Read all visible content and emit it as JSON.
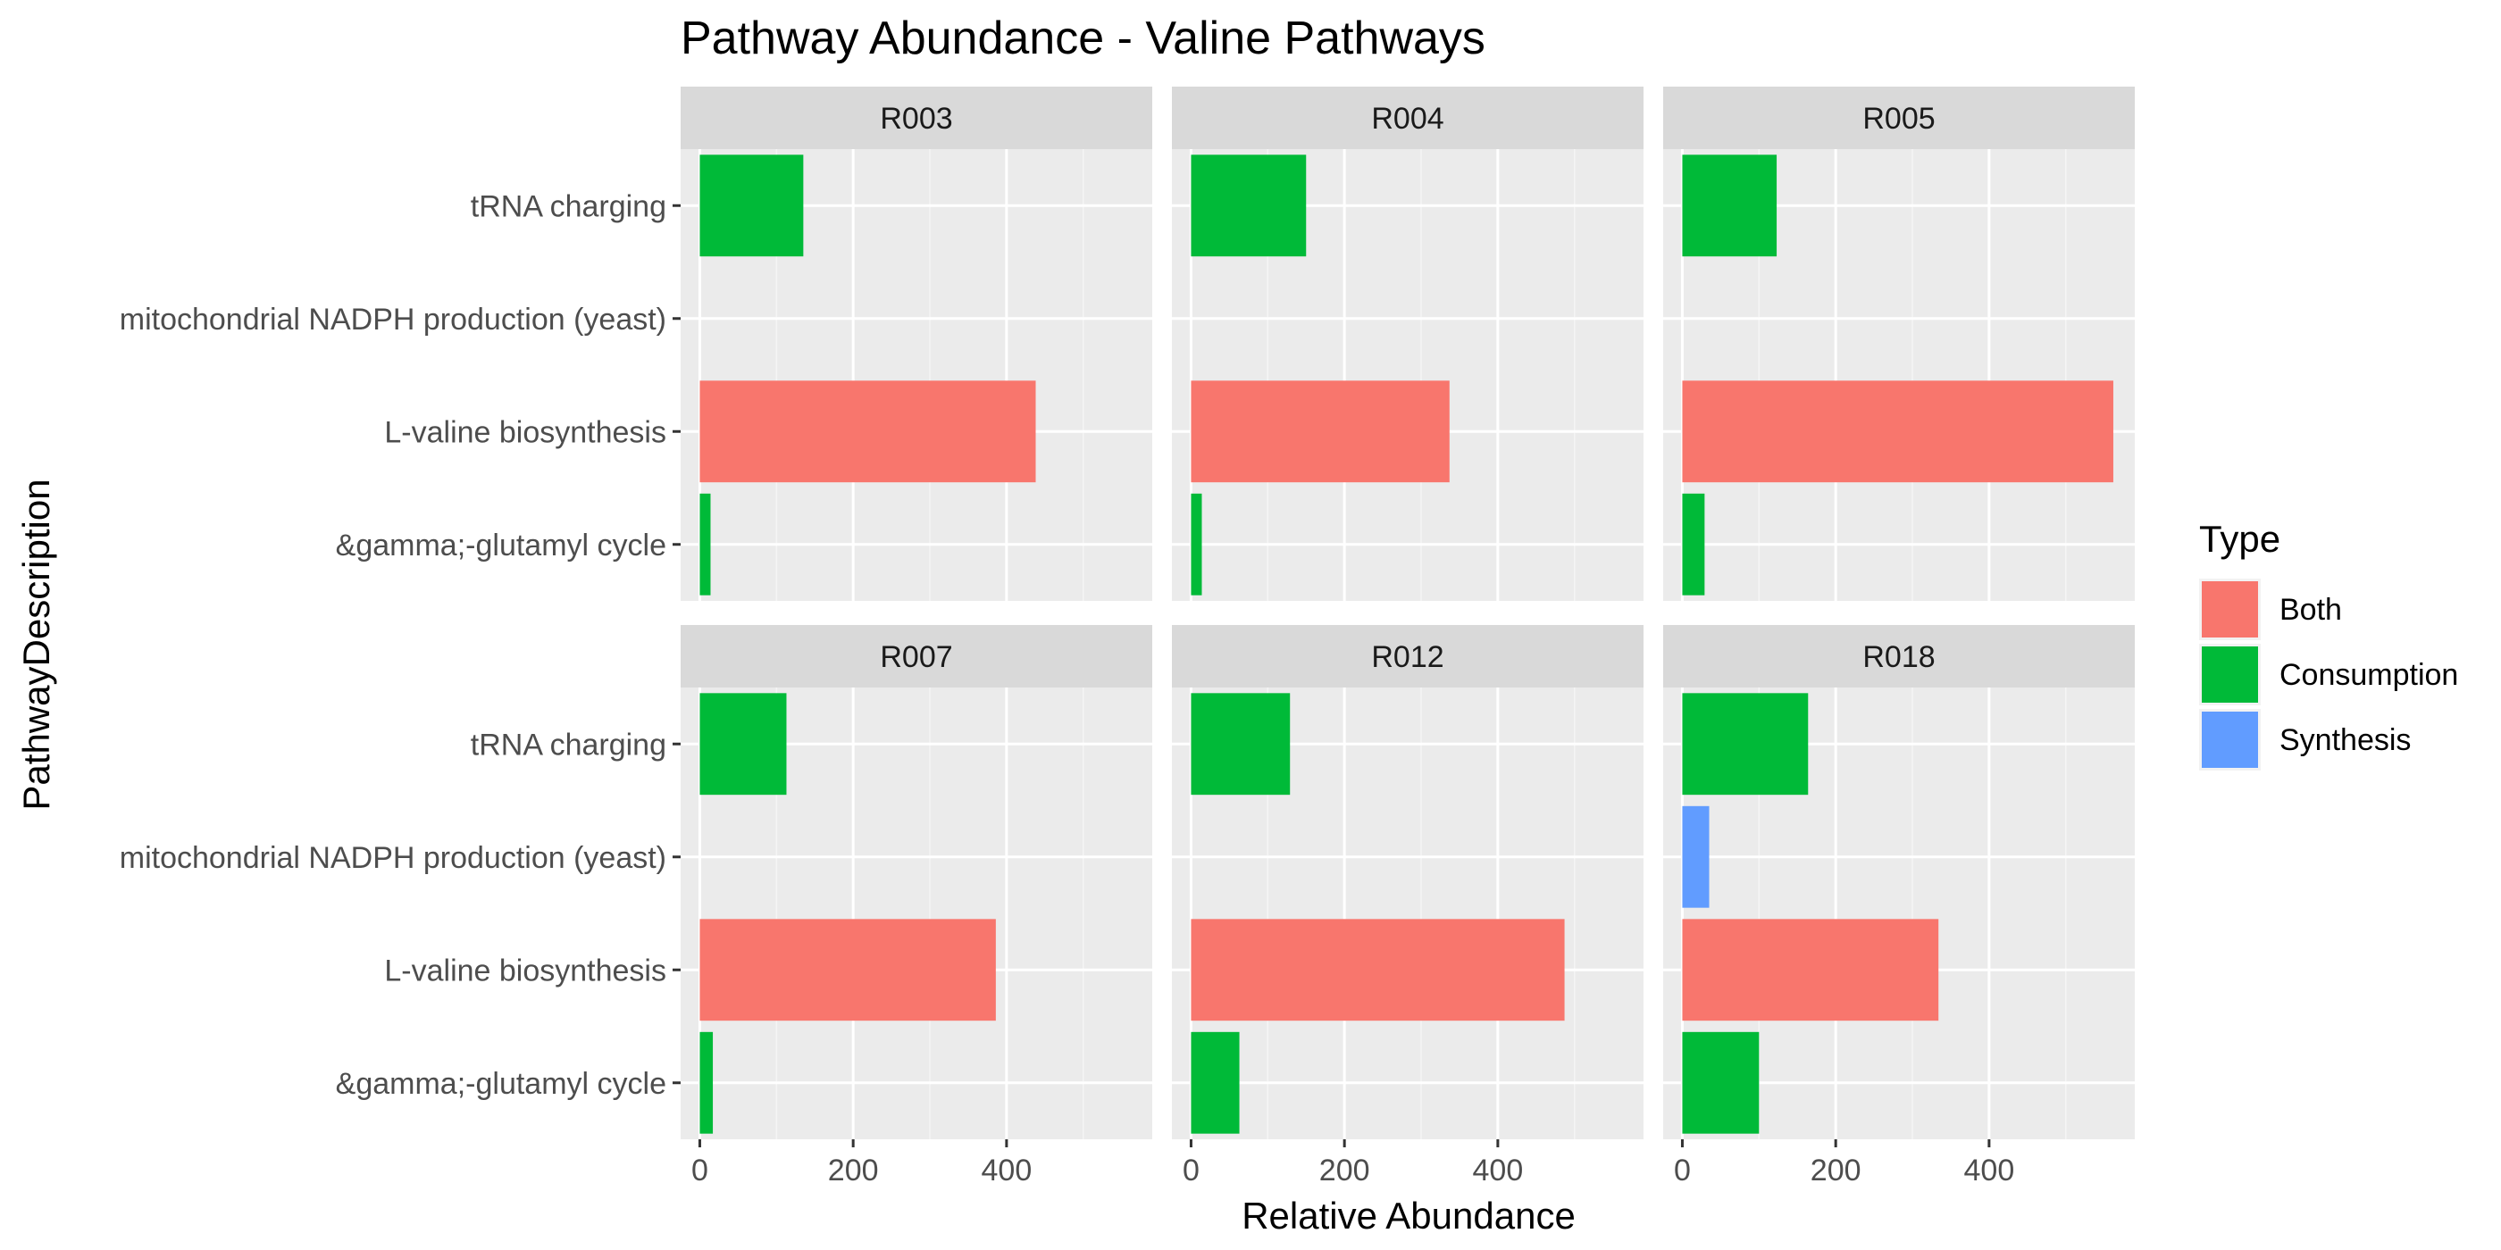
{
  "chart_data": {
    "type": "bar",
    "orientation": "horizontal",
    "title": "Pathway Abundance - Valine Pathways",
    "xlabel": "Relative Abundance",
    "ylabel": "PathwayDescription",
    "xlim": [
      -25,
      590
    ],
    "x_ticks": [
      0,
      200,
      400
    ],
    "categories": [
      "tRNA charging",
      "mitochondrial NADPH production (yeast)",
      "L-valine biosynthesis",
      "&gamma;-glutamyl cycle"
    ],
    "legend": {
      "title": "Type",
      "position": "right",
      "items": [
        {
          "label": "Both",
          "color": "#F8766D"
        },
        {
          "label": "Consumption",
          "color": "#00BA38"
        },
        {
          "label": "Synthesis",
          "color": "#619CFF"
        }
      ]
    },
    "facets": [
      {
        "label": "R003",
        "bars": [
          {
            "category": "tRNA charging",
            "value": 135,
            "type": "Consumption"
          },
          {
            "category": "L-valine biosynthesis",
            "value": 438,
            "type": "Both"
          },
          {
            "category": "&gamma;-glutamyl cycle",
            "value": 14,
            "type": "Consumption"
          }
        ]
      },
      {
        "label": "R004",
        "bars": [
          {
            "category": "tRNA charging",
            "value": 150,
            "type": "Consumption"
          },
          {
            "category": "L-valine biosynthesis",
            "value": 337,
            "type": "Both"
          },
          {
            "category": "&gamma;-glutamyl cycle",
            "value": 14,
            "type": "Consumption"
          }
        ]
      },
      {
        "label": "R005",
        "bars": [
          {
            "category": "tRNA charging",
            "value": 123,
            "type": "Consumption"
          },
          {
            "category": "L-valine biosynthesis",
            "value": 562,
            "type": "Both"
          },
          {
            "category": "&gamma;-glutamyl cycle",
            "value": 29,
            "type": "Consumption"
          }
        ]
      },
      {
        "label": "R007",
        "bars": [
          {
            "category": "tRNA charging",
            "value": 113,
            "type": "Consumption"
          },
          {
            "category": "L-valine biosynthesis",
            "value": 386,
            "type": "Both"
          },
          {
            "category": "&gamma;-glutamyl cycle",
            "value": 17,
            "type": "Consumption"
          }
        ]
      },
      {
        "label": "R012",
        "bars": [
          {
            "category": "tRNA charging",
            "value": 129,
            "type": "Consumption"
          },
          {
            "category": "L-valine biosynthesis",
            "value": 487,
            "type": "Both"
          },
          {
            "category": "&gamma;-glutamyl cycle",
            "value": 63,
            "type": "Consumption"
          }
        ]
      },
      {
        "label": "R018",
        "bars": [
          {
            "category": "tRNA charging",
            "value": 164,
            "type": "Consumption"
          },
          {
            "category": "mitochondrial NADPH production (yeast)",
            "value": 35,
            "type": "Synthesis"
          },
          {
            "category": "L-valine biosynthesis",
            "value": 334,
            "type": "Both"
          },
          {
            "category": "&gamma;-glutamyl cycle",
            "value": 100,
            "type": "Consumption"
          }
        ]
      }
    ],
    "grid": true
  }
}
